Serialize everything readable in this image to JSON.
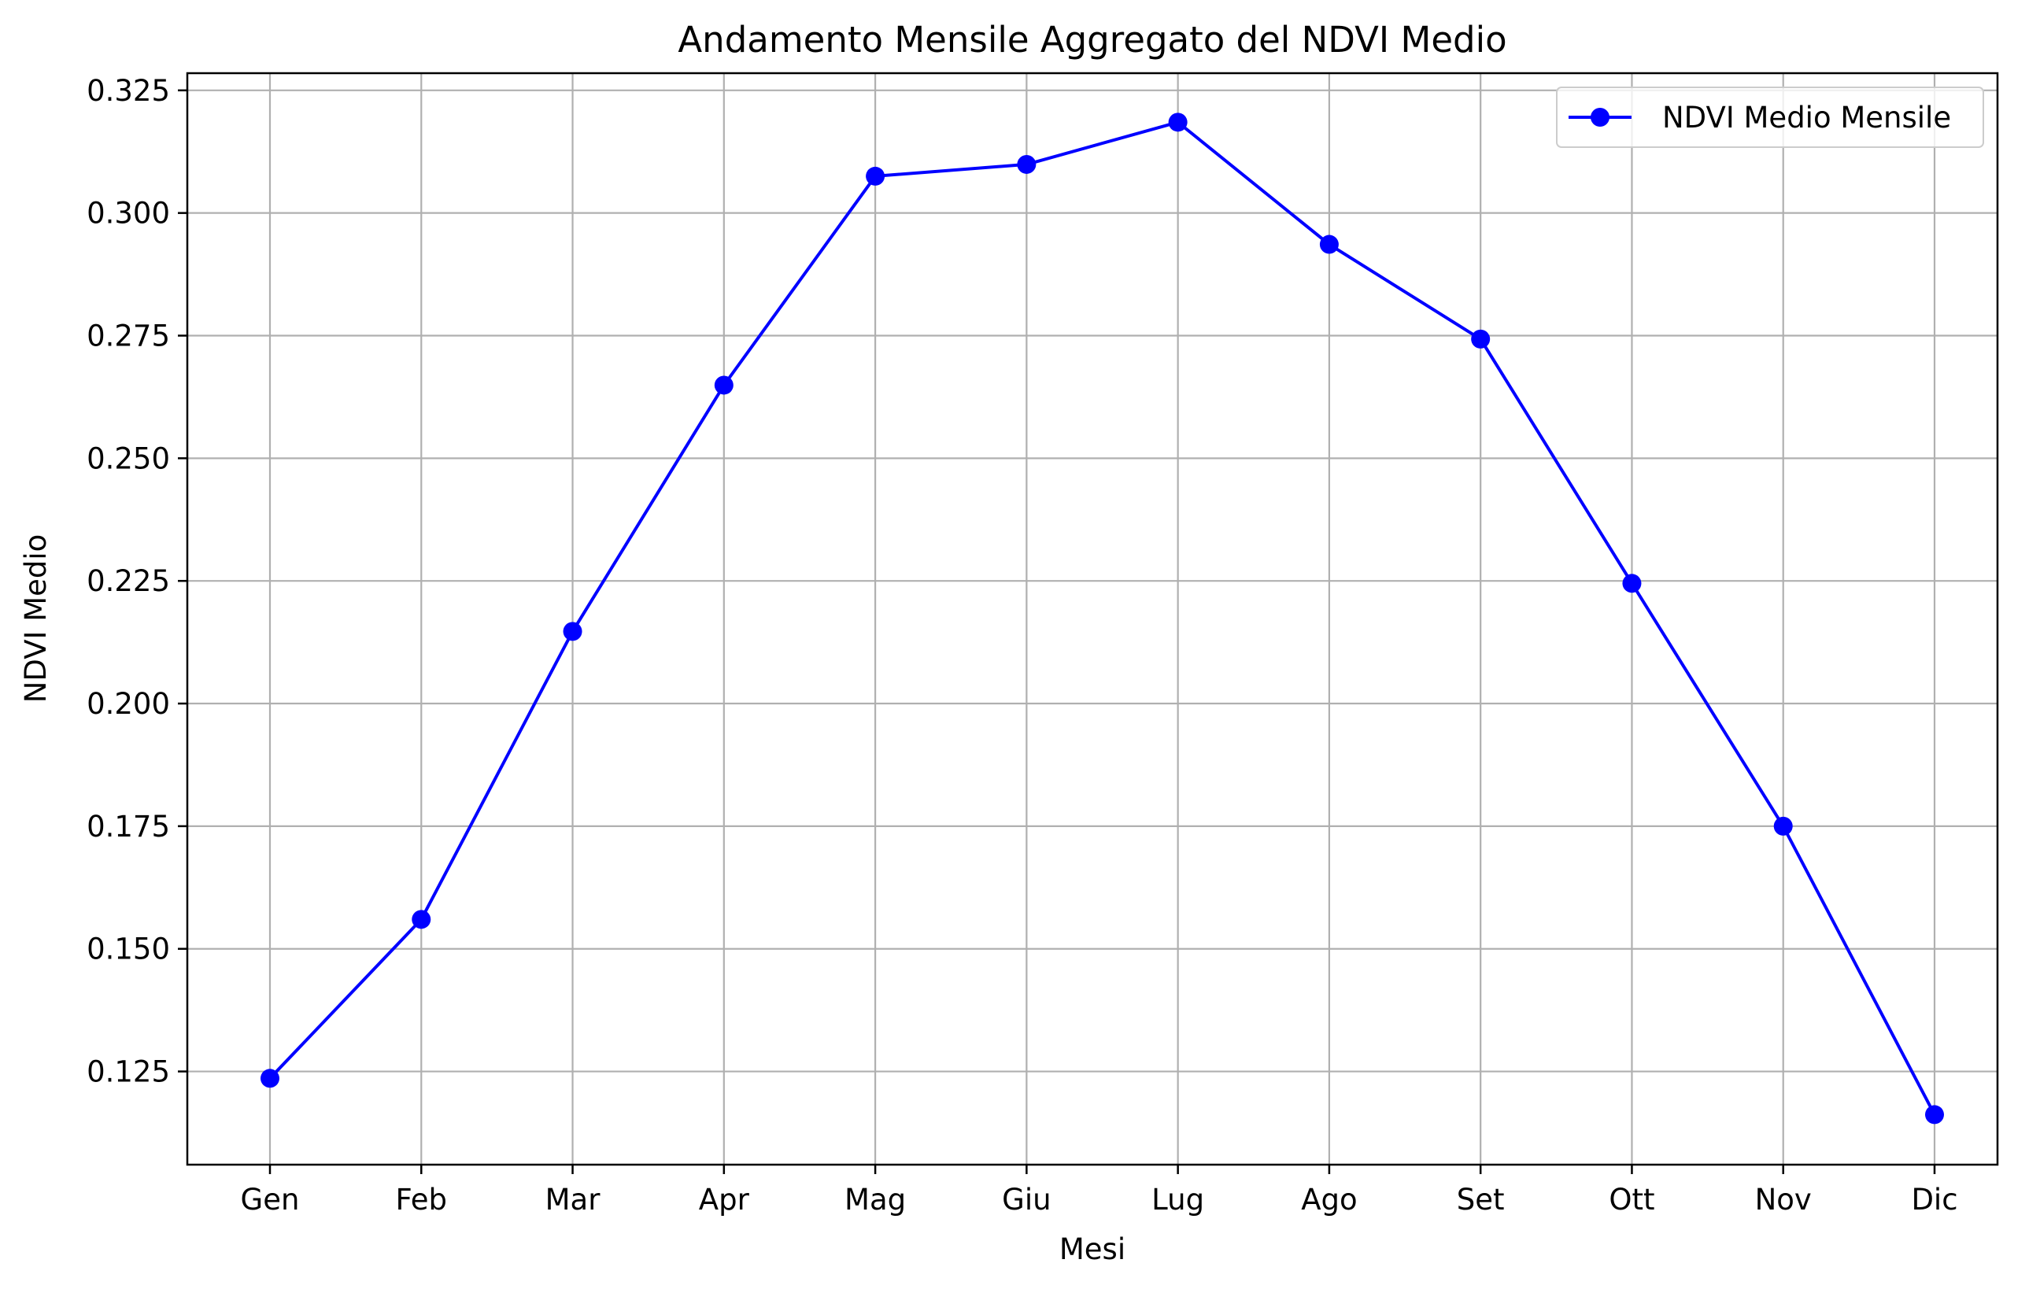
{
  "chart_data": {
    "type": "line",
    "title": "Andamento Mensile Aggregato del NDVI Medio",
    "xlabel": "Mesi",
    "ylabel": "NDVI Medio",
    "categories": [
      "Gen",
      "Feb",
      "Mar",
      "Apr",
      "Mag",
      "Giu",
      "Lug",
      "Ago",
      "Set",
      "Ott",
      "Nov",
      "Dic"
    ],
    "series": [
      {
        "name": "NDVI Medio Mensile",
        "color": "#0000ff",
        "marker": "circle",
        "values": [
          0.1236,
          0.156,
          0.2147,
          0.2649,
          0.3075,
          0.3099,
          0.3185,
          0.2936,
          0.2743,
          0.2245,
          0.175,
          0.1162
        ]
      }
    ],
    "ylim": [
      0.106,
      0.3285
    ],
    "yticks": [
      0.125,
      0.15,
      0.175,
      0.2,
      0.225,
      0.25,
      0.275,
      0.3,
      0.325
    ],
    "ytick_labels": [
      "0.125",
      "0.150",
      "0.175",
      "0.200",
      "0.225",
      "0.250",
      "0.275",
      "0.300",
      "0.325"
    ],
    "grid": true,
    "legend_position": "top-right"
  }
}
